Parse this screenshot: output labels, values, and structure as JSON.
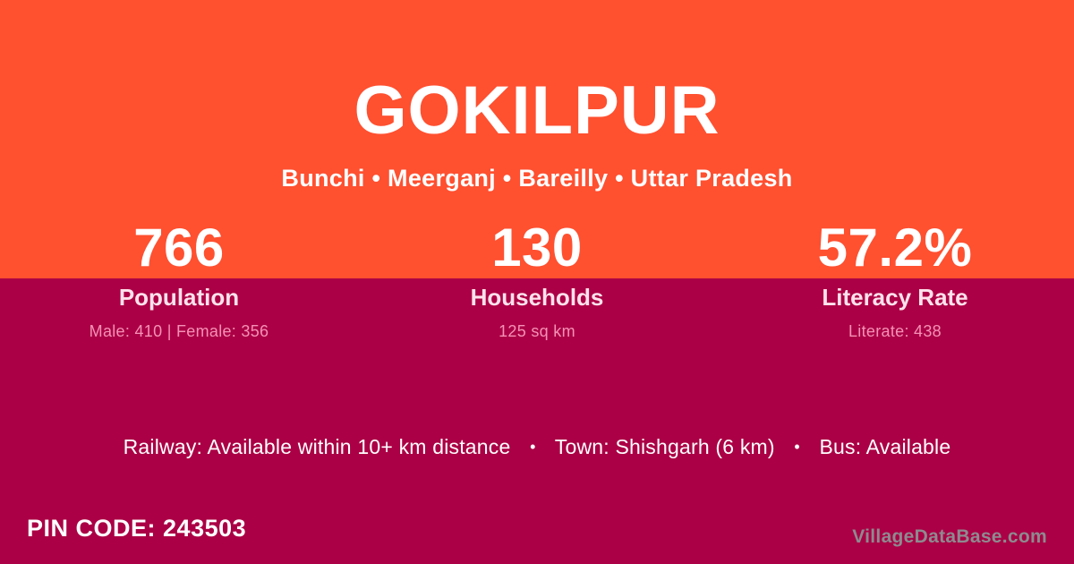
{
  "header": {
    "title": "GOKILPUR",
    "subtitle": "Bunchi • Meerganj • Bareilly • Uttar Pradesh"
  },
  "stats": [
    {
      "value": "766",
      "label": "Population",
      "detail": "Male: 410 | Female: 356"
    },
    {
      "value": "130",
      "label": "Households",
      "detail": "125 sq km"
    },
    {
      "value": "57.2%",
      "label": "Literacy Rate",
      "detail": "Literate: 438"
    }
  ],
  "info": {
    "separator": "•",
    "segments": [
      "Railway: Available within 10+ km distance",
      "Town: Shishgarh (6 km)",
      "Bus: Available"
    ]
  },
  "footer": {
    "pin_label": "PIN CODE:",
    "pin_value": "243503",
    "watermark": "VillageDataBase.com"
  },
  "colors": {
    "top_bg": "#FF5030",
    "bottom_bg": "#AB0045",
    "text_primary": "#FFFFFF",
    "label_pink": "#FFE2EC",
    "detail_pink": "#F491B6",
    "watermark_gray": "#8E8A90"
  }
}
